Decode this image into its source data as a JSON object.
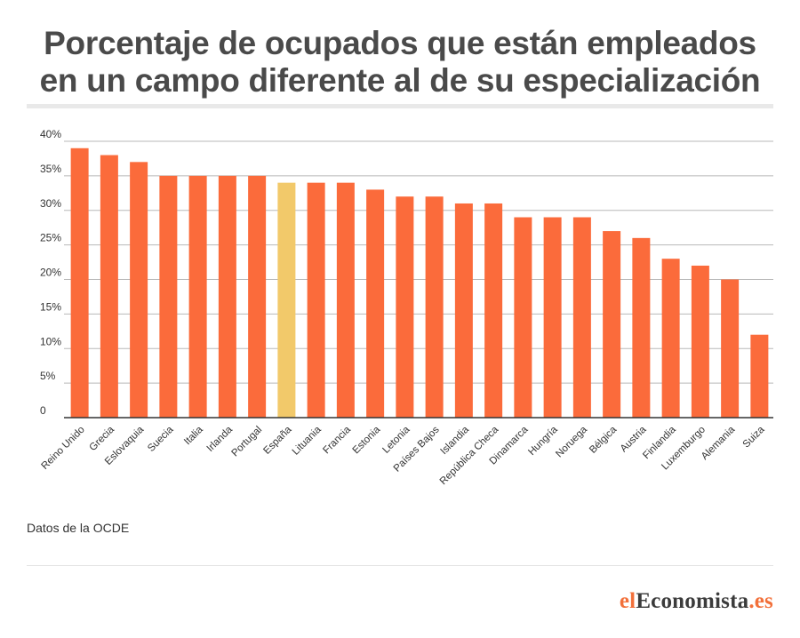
{
  "header": {
    "title_line1": "Porcentaje de ocupados que están empleados",
    "title_line2": "en un campo diferente al de su especialización"
  },
  "footer": {
    "source": "Datos de la OCDE",
    "logo_el": "el",
    "logo_economista": "Economista",
    "logo_es": ".es"
  },
  "colors": {
    "bar": "#fb6b3b",
    "highlight": "#f2c96a",
    "axis": "#333333",
    "grid": "#b8b8b8",
    "text": "#333333"
  },
  "chart_data": {
    "type": "bar",
    "title": "Porcentaje de ocupados que están empleados en un campo diferente al de su especialización",
    "xlabel": "",
    "ylabel": "",
    "ylim": [
      0,
      40
    ],
    "grid": true,
    "yticks": [
      "0",
      "5%",
      "10%",
      "15%",
      "20%",
      "25%",
      "30%",
      "35%",
      "40%"
    ],
    "highlight": "España",
    "categories": [
      "Reino Unido",
      "Grecia",
      "Eslovaquia",
      "Suecia",
      "Italia",
      "Irlanda",
      "Portugal",
      "España",
      "Lituania",
      "Francia",
      "Estonia",
      "Letonia",
      "Países Bajos",
      "Islandia",
      "República Checa",
      "Dinamarca",
      "Hungría",
      "Noruega",
      "Bélgica",
      "Austria",
      "Finlandia",
      "Luxemburgo",
      "Alemania",
      "Suiza"
    ],
    "values": [
      39,
      38,
      37,
      35,
      35,
      35,
      35,
      34,
      34,
      34,
      33,
      32,
      32,
      31,
      31,
      29,
      29,
      29,
      27,
      26,
      23,
      22,
      20,
      12
    ]
  }
}
